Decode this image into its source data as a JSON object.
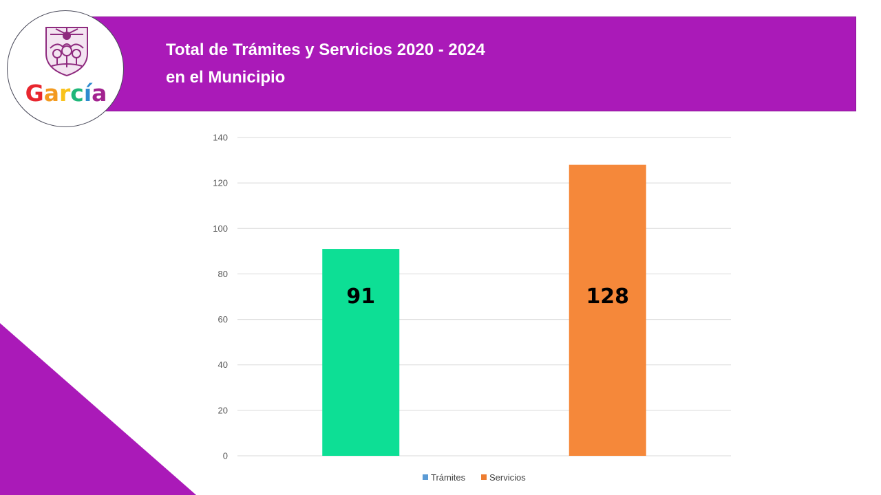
{
  "header": {
    "title_line1": "Total de Trámites y Servicios 2020 - 2024",
    "title_line2": "en el Municipio"
  },
  "logo": {
    "icon": "garcia-shield-icon",
    "text": "García",
    "colors": [
      "#e8262e",
      "#f39a1f",
      "#f9c21b",
      "#1fb77a",
      "#2e8bcf",
      "#a2238f"
    ]
  },
  "colors": {
    "banner": "#aa1ab8",
    "tramites_bar": "#0ddf95",
    "servicios_bar": "#f5883a",
    "tramites_legend": "#5b9bd5",
    "servicios_legend": "#ed7d31"
  },
  "chart_data": {
    "type": "bar",
    "y_ticks": [
      0,
      20,
      40,
      60,
      80,
      100,
      120,
      140
    ],
    "ylim": [
      0,
      140
    ],
    "grid": true,
    "legend_position": "bottom",
    "series": [
      {
        "name": "Trámites",
        "value": 91,
        "label": "91"
      },
      {
        "name": "Servicios",
        "value": 128,
        "label": "128"
      }
    ]
  }
}
